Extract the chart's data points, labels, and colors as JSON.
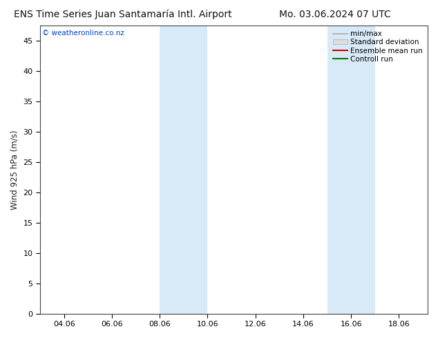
{
  "title_left": "ENS Time Series Juan Santamaría Intl. Airport",
  "title_right": "Mo. 03.06.2024 07 UTC",
  "ylabel": "Wind 925 hPa (m/s)",
  "watermark": "© weatheronline.co.nz",
  "watermark_color": "#0044cc",
  "background_color": "#ffffff",
  "plot_bg_color": "#ffffff",
  "ylim": [
    0,
    47.5
  ],
  "yticks": [
    0,
    5,
    10,
    15,
    20,
    25,
    30,
    35,
    40,
    45
  ],
  "xlim_start": 3.0,
  "xlim_end": 19.2,
  "xtick_positions": [
    4,
    6,
    8,
    10,
    12,
    14,
    16,
    18
  ],
  "xtick_labels": [
    "04.06",
    "06.06",
    "08.06",
    "10.06",
    "12.06",
    "14.06",
    "16.06",
    "18.06"
  ],
  "shaded_bands": [
    {
      "x_start": 8.0,
      "x_end": 10.0
    },
    {
      "x_start": 15.0,
      "x_end": 17.0
    }
  ],
  "shade_color": "#d8eaf8",
  "shade_alpha": 1.0,
  "legend_entries": [
    {
      "label": "min/max",
      "color": "#aaaaaa",
      "lw": 1.2,
      "type": "line"
    },
    {
      "label": "Standard deviation",
      "color": "#cccccc",
      "lw": 7,
      "type": "box"
    },
    {
      "label": "Ensemble mean run",
      "color": "#cc0000",
      "lw": 1.5,
      "type": "line"
    },
    {
      "label": "Controll run",
      "color": "#007700",
      "lw": 1.5,
      "type": "line"
    }
  ],
  "title_fontsize": 10,
  "label_fontsize": 8.5,
  "tick_fontsize": 8,
  "legend_fontsize": 7.5,
  "watermark_fontsize": 7.5
}
